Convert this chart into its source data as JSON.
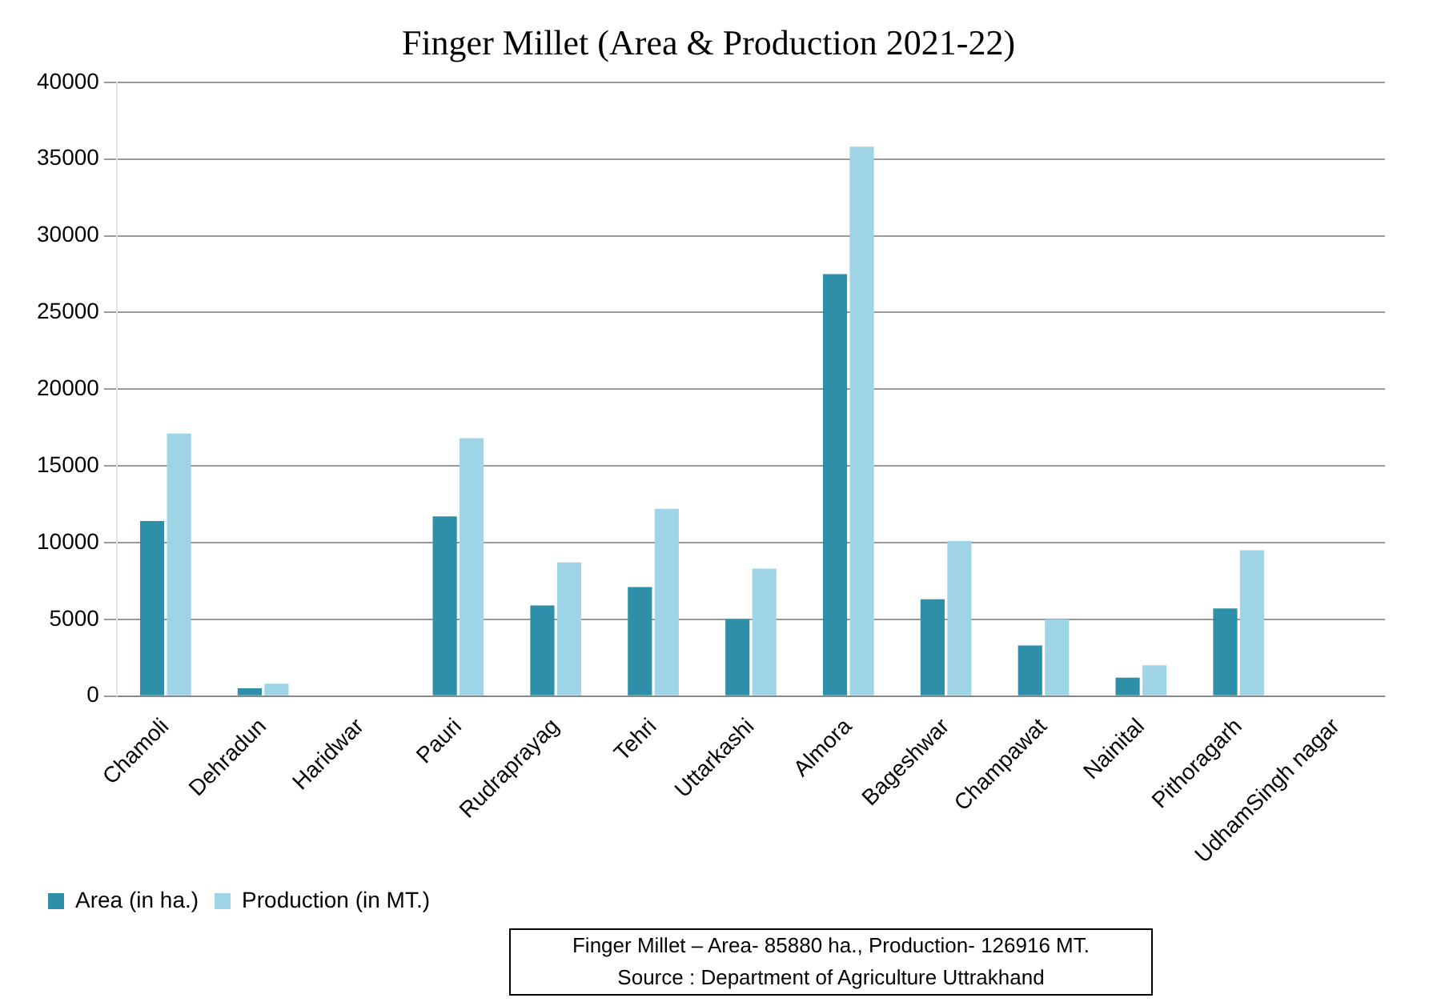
{
  "chart_data": {
    "type": "bar",
    "title": "Finger Millet (Area & Production 2021-22)",
    "categories": [
      "Chamoli",
      "Dehradun",
      "Haridwar",
      "Pauri",
      "Rudraprayag",
      "Tehri",
      "Uttarkashi",
      "Almora",
      "Bageshwar",
      "Champawat",
      "Nainital",
      "Pithoragarh",
      "UdhamSingh nagar"
    ],
    "series": [
      {
        "name": "Area (in ha.)",
        "color": "#2e8fa8",
        "values": [
          11400,
          500,
          0,
          11700,
          5900,
          7100,
          5000,
          27500,
          6300,
          3300,
          1200,
          5700,
          0
        ]
      },
      {
        "name": "Production (in MT.)",
        "color": "#9fd4e6",
        "values": [
          17100,
          800,
          0,
          16800,
          8700,
          12200,
          8300,
          35800,
          10100,
          5000,
          2000,
          9500,
          0
        ]
      }
    ],
    "ylim": [
      0,
      40000
    ],
    "yticks": [
      0,
      5000,
      10000,
      15000,
      20000,
      25000,
      30000,
      35000,
      40000
    ],
    "grid": "y",
    "legend": "bottom left",
    "annotations": [
      "Finger Millet – Area- 85880 ha., Production- 126916 MT.",
      "Source : Department of Agriculture Uttrakhand"
    ]
  }
}
